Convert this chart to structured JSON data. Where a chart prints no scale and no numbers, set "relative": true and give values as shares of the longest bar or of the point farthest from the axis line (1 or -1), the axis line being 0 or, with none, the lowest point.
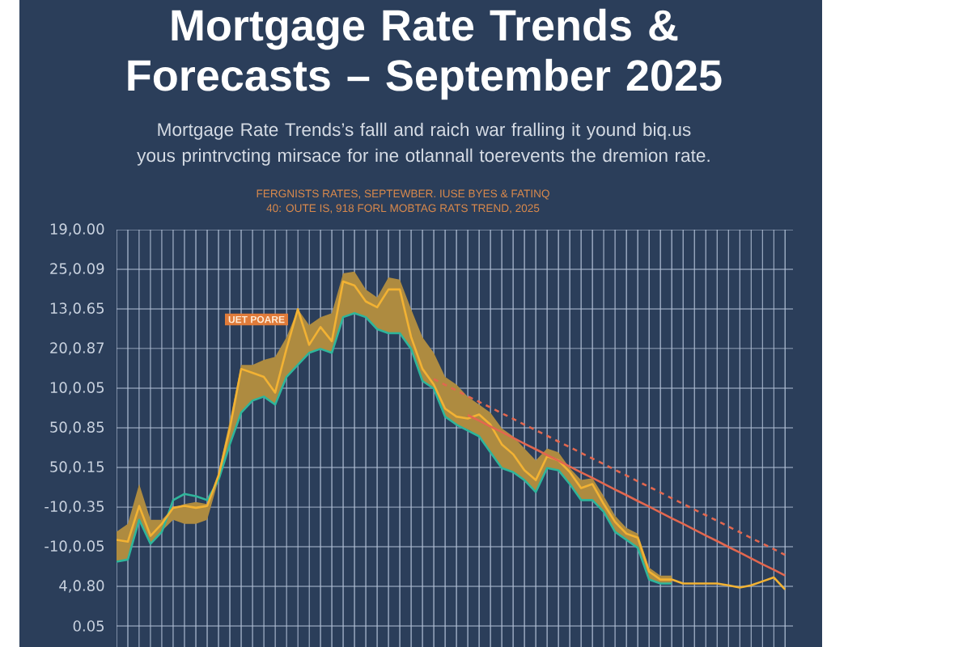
{
  "chart_data": {
    "type": "line",
    "relative": true,
    "title": "Mortgage Rate Trends & Forecasts – September 2025",
    "subtitle": "Mortgage Rate Trends’s falll and raich war fralling it yound biq.us yous printrvcting mirsace for ine otlannall toerevents the dremion rate.",
    "annotations": [
      "FERGNISTS RATES, SEPTEWBER. IUSE BYES & FATINQ",
      "40: OUTE IS, 918 FORL MOBTAG RATS TREND, 2025",
      "UET POARE",
      "19,0.00",
      "25,0.09",
      "13,0.65",
      "20,0.87",
      "10,0.05",
      "50,0.85",
      "50,0.15",
      "-10,0.35",
      "-10,0.05",
      "4,0.80",
      "0.05"
    ],
    "categories": [
      null,
      null,
      null,
      null,
      null,
      null,
      null,
      null,
      null,
      null,
      null,
      null,
      null,
      null,
      null,
      null,
      null,
      null,
      null,
      null,
      null,
      null,
      null,
      null,
      null,
      null,
      null,
      null,
      null,
      null,
      null,
      null,
      null,
      null,
      null,
      null,
      null,
      null,
      null,
      null,
      null,
      null,
      null,
      null,
      null,
      null,
      null,
      null,
      null,
      null,
      null,
      null,
      null,
      null,
      null,
      null,
      null,
      null,
      null,
      null
    ],
    "series": [
      {
        "color": "#2fb59b",
        "values": [
          0.09,
          0.097,
          0.226,
          0.148,
          0.187,
          0.29,
          0.31,
          0.303,
          0.29,
          0.355,
          0.471,
          0.574,
          0.613,
          0.626,
          0.6,
          0.69,
          0.729,
          0.768,
          0.781,
          0.768,
          0.884,
          0.897,
          0.884,
          0.845,
          0.832,
          0.832,
          0.781,
          0.677,
          0.652,
          0.561,
          0.535,
          0.516,
          0.497,
          0.445,
          0.394,
          0.381,
          0.355,
          0.316,
          0.394,
          0.387,
          0.342,
          0.29,
          0.29,
          0.252,
          0.187,
          0.161,
          0.135,
          0.032,
          0.019,
          0.019,
          null,
          null,
          null,
          null,
          null,
          null,
          null,
          null,
          null,
          null
        ]
      },
      {
        "color": "#f2b233",
        "values": [
          0.161,
          0.155,
          0.271,
          0.174,
          0.213,
          0.265,
          0.271,
          0.265,
          0.271,
          0.368,
          0.523,
          0.716,
          0.703,
          0.69,
          0.639,
          0.781,
          0.91,
          0.794,
          0.852,
          0.806,
          1,
          0.987,
          0.935,
          0.916,
          0.974,
          0.974,
          0.819,
          0.716,
          0.665,
          0.587,
          0.561,
          0.555,
          0.568,
          0.535,
          0.471,
          0.439,
          0.387,
          0.355,
          0.432,
          0.419,
          0.381,
          0.329,
          0.342,
          0.277,
          0.219,
          0.181,
          0.168,
          0.058,
          0.032,
          0.032,
          0.019,
          0.019,
          0.019,
          0.019,
          0.013,
          0.006,
          0.013,
          0.026,
          0.039,
          0
        ],
        "lower": [
          0.09,
          0.097,
          0.226,
          0.148,
          0.19,
          0.226,
          0.213,
          0.213,
          0.226,
          0.355,
          0.471,
          0.574,
          0.613,
          0.626,
          0.6,
          0.69,
          0.726,
          0.768,
          0.781,
          0.768,
          0.884,
          0.897,
          0.884,
          0.845,
          0.832,
          0.832,
          0.781,
          0.677,
          0.652,
          0.561,
          0.535,
          0.52,
          0.497,
          0.445,
          0.394,
          0.381,
          0.355,
          0.316,
          0.394,
          0.387,
          0.342,
          0.29,
          0.29,
          0.252,
          0.187,
          0.165,
          0.135,
          0.032,
          0.019,
          0.019,
          null,
          null,
          null,
          null,
          null,
          null,
          null,
          null,
          null,
          null
        ],
        "upper": [
          0.187,
          0.213,
          0.342,
          0.226,
          0.226,
          0.265,
          0.277,
          0.284,
          0.277,
          0.381,
          0.548,
          0.729,
          0.729,
          0.745,
          0.755,
          0.819,
          0.91,
          0.858,
          0.884,
          0.897,
          1.026,
          1.032,
          0.974,
          0.948,
          1.013,
          1.006,
          0.91,
          0.819,
          0.768,
          0.69,
          0.665,
          0.626,
          0.6,
          0.574,
          0.523,
          0.497,
          0.458,
          0.419,
          0.458,
          0.445,
          0.394,
          0.355,
          0.361,
          0.303,
          0.239,
          0.2,
          0.181,
          0.071,
          0.045,
          0.045,
          null,
          null,
          null,
          null,
          null,
          null,
          null,
          null,
          null,
          null
        ]
      },
      {
        "color": "#e2674f",
        "line_style": "dashed",
        "values": [
          null,
          null,
          null,
          null,
          null,
          null,
          null,
          null,
          null,
          null,
          null,
          null,
          null,
          null,
          null,
          null,
          null,
          null,
          null,
          null,
          null,
          null,
          null,
          null,
          null,
          null,
          null,
          null,
          0.683,
          0.664,
          0.646,
          0.627,
          0.609,
          0.591,
          0.572,
          0.554,
          0.535,
          0.517,
          0.499,
          0.48,
          0.462,
          0.443,
          0.425,
          0.407,
          0.388,
          0.37,
          0.351,
          0.333,
          0.315,
          0.296,
          0.278,
          0.259,
          0.241,
          0.223,
          0.204,
          0.186,
          0.167,
          0.149,
          0.131,
          0.112
        ]
      },
      {
        "color": "#e2674f",
        "values": [
          null,
          null,
          null,
          null,
          null,
          null,
          null,
          null,
          null,
          null,
          null,
          null,
          null,
          null,
          null,
          null,
          null,
          null,
          null,
          null,
          null,
          null,
          null,
          null,
          null,
          null,
          null,
          null,
          null,
          null,
          null,
          0.566,
          0.548,
          0.529,
          0.511,
          0.492,
          0.473,
          0.455,
          0.436,
          0.418,
          0.399,
          0.38,
          0.362,
          0.343,
          0.324,
          0.306,
          0.287,
          0.269,
          0.25,
          0.231,
          0.213,
          0.194,
          0.175,
          0.157,
          0.138,
          0.12,
          0.101,
          0.082,
          0.064,
          0.045
        ]
      }
    ],
    "grid": true,
    "tick_labels": false
  }
}
